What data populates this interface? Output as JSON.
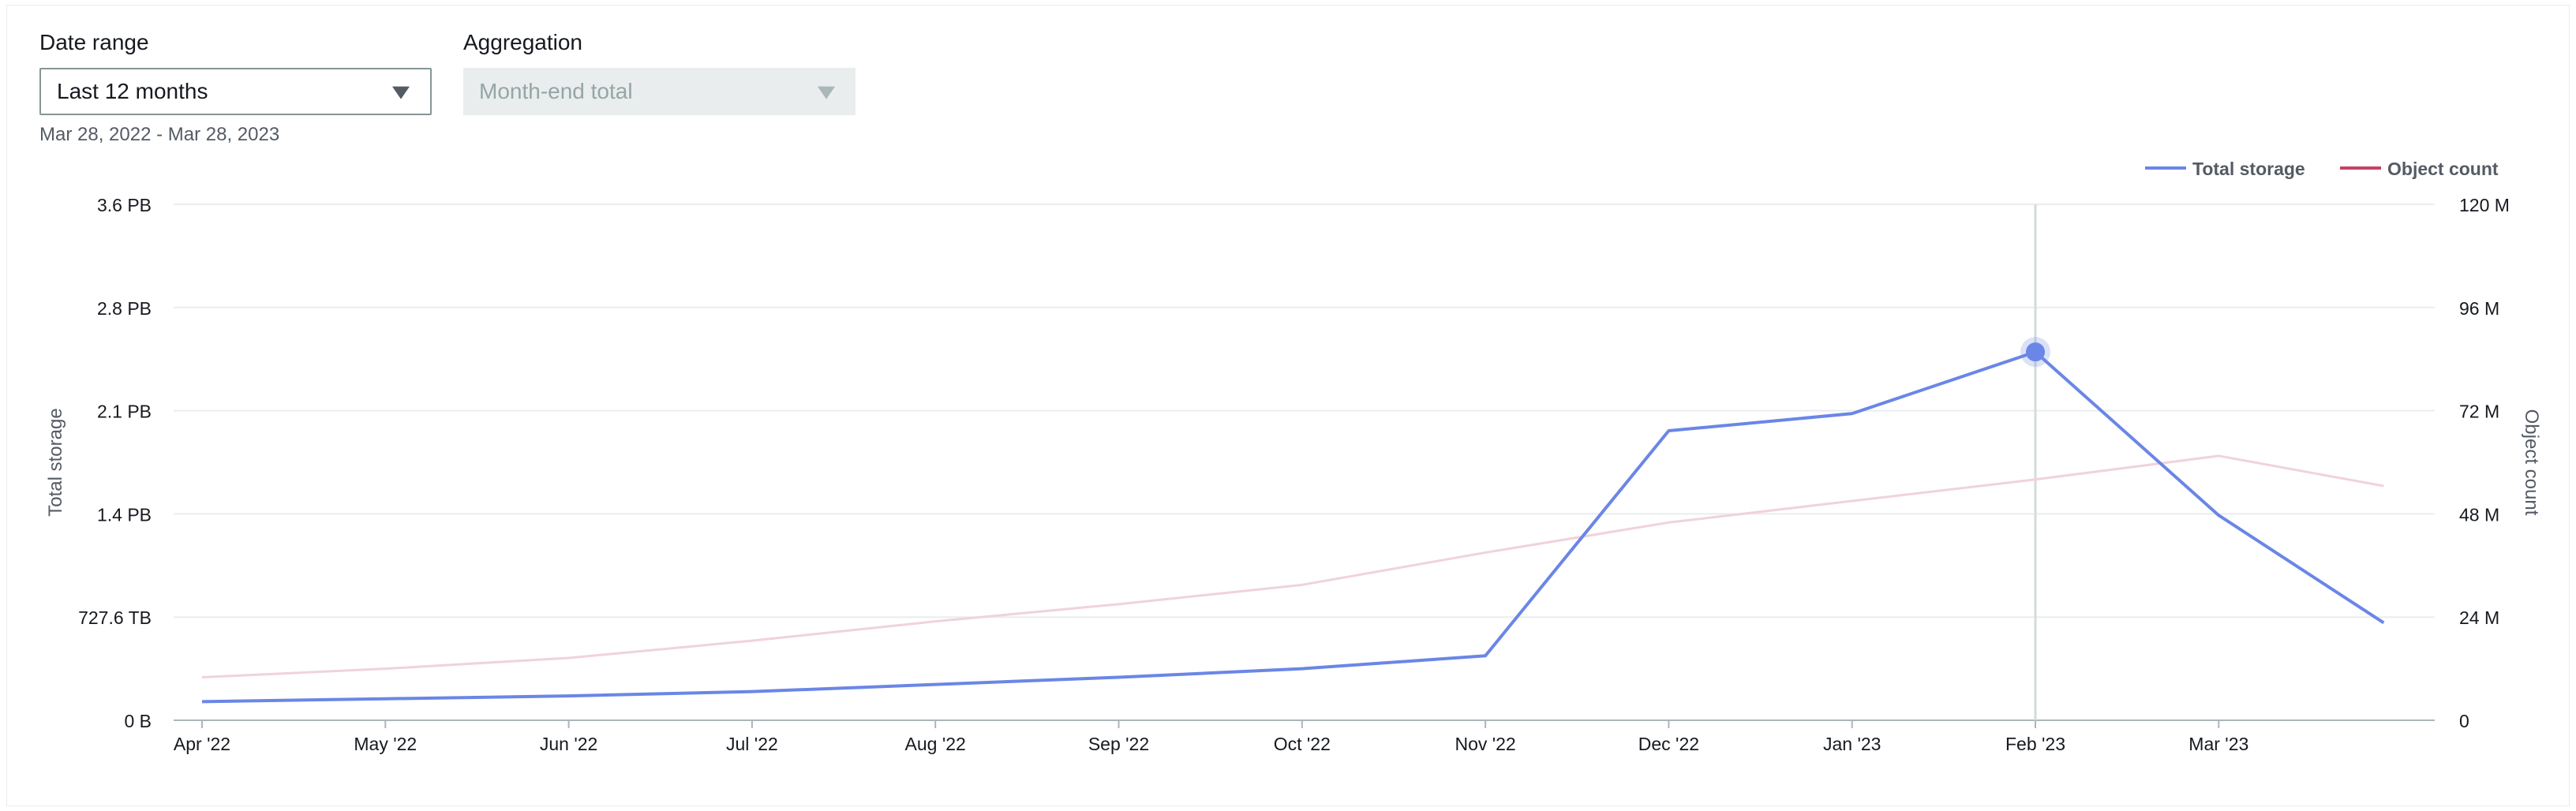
{
  "controls": {
    "date_range_label": "Date range",
    "date_range_value": "Last 12 months",
    "aggregation_label": "Aggregation",
    "aggregation_value": "Month-end total",
    "range_text": "Mar 28, 2022 - Mar 28, 2023"
  },
  "colors": {
    "total_storage": "#6a86e6",
    "object_count": "#c64262",
    "object_count_faded": "#f0d3da",
    "hover_line": "#d5dbdb",
    "grid": "#eaeded"
  },
  "chart_data": {
    "type": "line",
    "title": "",
    "xlabel": "",
    "ylabel": "Total storage",
    "y2label": "Object count",
    "categories": [
      "Apr '22",
      "May '22",
      "Jun '22",
      "Jul '22",
      "Aug '22",
      "Sep '22",
      "Oct '22",
      "Nov '22",
      "Dec '22",
      "Jan '23",
      "Feb '23",
      "Mar '23"
    ],
    "y_ticks": [
      "0 B",
      "727.6 TB",
      "1.4 PB",
      "2.1 PB",
      "2.8 PB",
      "3.6 PB"
    ],
    "y_range_pb": [
      0,
      3.6
    ],
    "y2_ticks": [
      "0",
      "24 M",
      "48 M",
      "72 M",
      "96 M",
      "120 M"
    ],
    "y2_range_m": [
      0,
      120
    ],
    "legend_position": "top-right",
    "highlighted_point": "Feb '23",
    "series": [
      {
        "name": "Total storage",
        "axis": "left",
        "unit": "PB",
        "x": [
          0,
          1,
          2,
          3,
          4,
          5,
          6,
          7,
          8,
          9,
          10,
          11,
          11.9
        ],
        "values": [
          0.13,
          0.15,
          0.17,
          0.2,
          0.25,
          0.3,
          0.36,
          0.45,
          2.02,
          2.14,
          2.57,
          1.43,
          0.68
        ]
      },
      {
        "name": "Object count",
        "axis": "right",
        "unit": "M",
        "x": [
          0,
          1,
          2,
          3,
          4,
          5,
          6,
          7,
          8,
          9,
          10,
          11,
          11.9
        ],
        "values": [
          10,
          12,
          14.5,
          18.5,
          23,
          27,
          31.5,
          39,
          46,
          51,
          56,
          61.5,
          54.5
        ]
      }
    ]
  }
}
